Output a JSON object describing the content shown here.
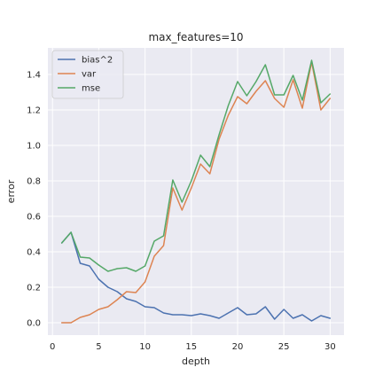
{
  "chart_data": {
    "type": "line",
    "title": "max_features=10",
    "xlabel": "depth",
    "ylabel": "error",
    "xlim": [
      -0.5,
      31.5
    ],
    "ylim": [
      -0.07,
      1.55
    ],
    "xticks": [
      0,
      5,
      10,
      15,
      20,
      25,
      30
    ],
    "yticks": [
      0.0,
      0.2,
      0.4,
      0.6,
      0.8,
      1.0,
      1.2,
      1.4
    ],
    "grid": true,
    "legend_position": "top-left",
    "x": [
      1,
      2,
      3,
      4,
      5,
      6,
      7,
      8,
      9,
      10,
      11,
      12,
      13,
      14,
      15,
      16,
      17,
      18,
      19,
      20,
      21,
      22,
      23,
      24,
      25,
      26,
      27,
      28,
      29,
      30
    ],
    "series": [
      {
        "name": "bias^2",
        "color": "#4c72b0",
        "values": [
          0.45,
          0.51,
          0.335,
          0.32,
          0.245,
          0.2,
          0.175,
          0.135,
          0.12,
          0.09,
          0.085,
          0.055,
          0.045,
          0.045,
          0.04,
          0.05,
          0.04,
          0.025,
          0.055,
          0.085,
          0.045,
          0.05,
          0.09,
          0.02,
          0.075,
          0.025,
          0.045,
          0.01,
          0.04,
          0.025
        ]
      },
      {
        "name": "var",
        "color": "#dd8452",
        "values": [
          0.0,
          0.0,
          0.03,
          0.045,
          0.075,
          0.09,
          0.13,
          0.175,
          0.17,
          0.23,
          0.375,
          0.435,
          0.76,
          0.635,
          0.76,
          0.895,
          0.84,
          1.035,
          1.17,
          1.275,
          1.235,
          1.305,
          1.365,
          1.265,
          1.215,
          1.37,
          1.21,
          1.47,
          1.2,
          1.265
        ]
      },
      {
        "name": "mse",
        "color": "#55a868",
        "values": [
          0.45,
          0.51,
          0.37,
          0.365,
          0.325,
          0.29,
          0.305,
          0.31,
          0.29,
          0.32,
          0.46,
          0.49,
          0.805,
          0.68,
          0.8,
          0.945,
          0.88,
          1.06,
          1.225,
          1.36,
          1.28,
          1.36,
          1.455,
          1.285,
          1.285,
          1.395,
          1.255,
          1.48,
          1.24,
          1.29
        ]
      }
    ]
  }
}
